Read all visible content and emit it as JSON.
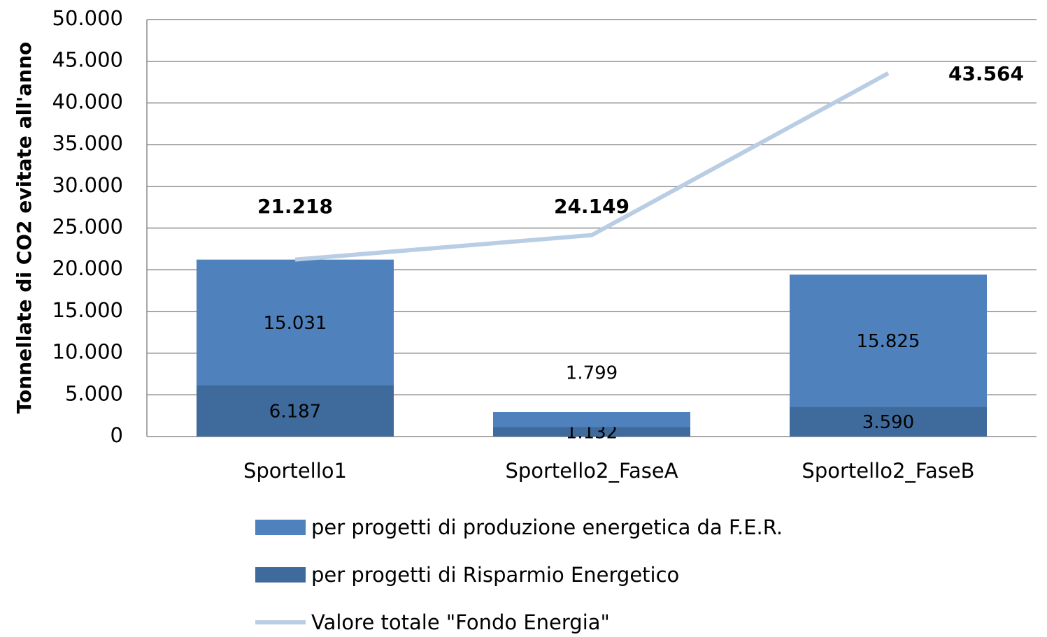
{
  "chart_data": {
    "type": "bar",
    "stacked": true,
    "ylabel": "Tonnellate di CO2 evitate all'anno",
    "categories": [
      "Sportello1",
      "Sportello2_FaseA",
      "Sportello2_FaseB"
    ],
    "series": [
      {
        "name": "per progetti di produzione energetica da F.E.R.",
        "color": "#4f81bd",
        "values": [
          15031,
          1799,
          15825
        ],
        "value_labels": [
          "15.031",
          "1.799",
          "15.825"
        ]
      },
      {
        "name": "per progetti di Risparmio Energetico",
        "color": "#3f6a9c",
        "values": [
          6187,
          1132,
          3590
        ],
        "value_labels": [
          "6.187",
          "1.132",
          "3.590"
        ]
      },
      {
        "name": "Valore totale \"Fondo Energia\"",
        "type": "line",
        "color": "#b9cde5",
        "values": [
          21218,
          24149,
          43564
        ],
        "value_labels": [
          "21.218",
          "24.149",
          "43.564"
        ]
      }
    ],
    "ylim": [
      0,
      50000
    ],
    "yticks": [
      0,
      {
        "value": 5000,
        "label": "5.000"
      },
      {
        "value": 10000,
        "label": "10.000"
      },
      {
        "value": 15000,
        "label": "15.000"
      },
      {
        "value": 20000,
        "label": "20.000"
      },
      {
        "value": 25000,
        "label": "25.000"
      },
      {
        "value": 30000,
        "label": "30.000"
      },
      {
        "value": 35000,
        "label": "35.000"
      },
      {
        "value": 40000,
        "label": "40.000"
      },
      {
        "value": 45000,
        "label": "45.000"
      },
      {
        "value": 50000,
        "label": "50.000"
      }
    ],
    "grid": true
  }
}
